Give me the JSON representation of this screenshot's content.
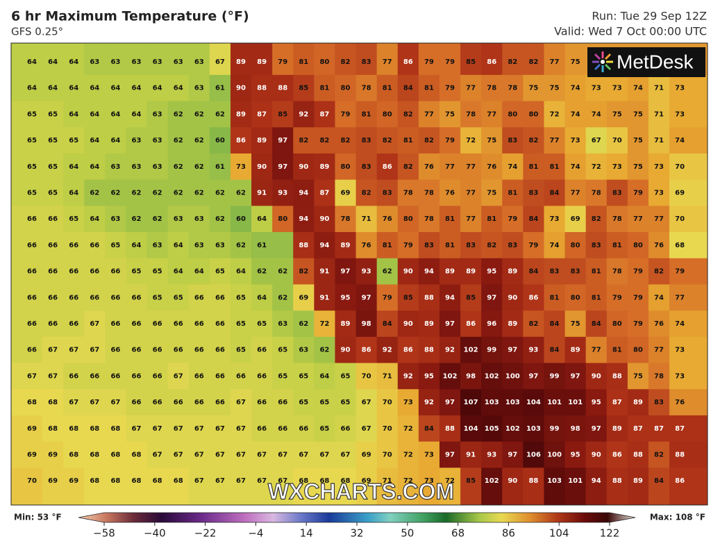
{
  "header": {
    "title": "6 hr Maximum Temperature (°F)",
    "model": "GFS 0.25°",
    "run": "Run: Tue 29 Sep 12Z",
    "valid": "Valid: Wed 7 Oct 00:00 UTC"
  },
  "logo": "MetDesk",
  "watermark": "WXCHARTS.COM",
  "map": {
    "grid": [
      [
        64,
        64,
        64,
        63,
        63,
        63,
        63,
        63,
        63,
        67,
        89,
        89,
        79,
        81,
        80,
        82,
        83,
        77,
        86,
        79,
        79,
        85,
        86,
        82,
        82,
        77,
        75,
        null,
        null,
        null,
        null,
        null
      ],
      [
        64,
        64,
        64,
        64,
        64,
        64,
        64,
        64,
        63,
        61,
        90,
        88,
        88,
        85,
        81,
        80,
        78,
        81,
        84,
        81,
        79,
        77,
        78,
        78,
        75,
        75,
        74,
        73,
        73,
        74,
        71,
        73
      ],
      [
        65,
        65,
        64,
        64,
        64,
        64,
        63,
        62,
        62,
        62,
        89,
        87,
        85,
        92,
        87,
        79,
        81,
        80,
        82,
        77,
        75,
        78,
        77,
        80,
        80,
        72,
        74,
        74,
        75,
        75,
        71,
        73
      ],
      [
        65,
        65,
        65,
        64,
        64,
        63,
        63,
        62,
        62,
        60,
        86,
        89,
        97,
        82,
        82,
        82,
        83,
        82,
        81,
        82,
        79,
        72,
        75,
        83,
        82,
        77,
        73,
        67,
        70,
        75,
        71,
        74
      ],
      [
        65,
        65,
        64,
        64,
        63,
        63,
        63,
        62,
        62,
        61,
        73,
        90,
        97,
        90,
        89,
        80,
        83,
        86,
        82,
        76,
        77,
        77,
        76,
        74,
        81,
        81,
        74,
        72,
        73,
        75,
        73,
        70
      ],
      [
        65,
        65,
        64,
        62,
        62,
        62,
        62,
        62,
        62,
        62,
        62,
        91,
        93,
        94,
        87,
        69,
        82,
        83,
        78,
        78,
        76,
        77,
        75,
        81,
        83,
        84,
        77,
        78,
        83,
        79,
        73,
        69
      ],
      [
        66,
        66,
        65,
        64,
        63,
        62,
        62,
        63,
        63,
        62,
        60,
        64,
        80,
        94,
        90,
        78,
        71,
        76,
        80,
        78,
        81,
        77,
        81,
        79,
        84,
        73,
        69,
        82,
        78,
        77,
        77,
        70
      ],
      [
        66,
        66,
        66,
        66,
        65,
        64,
        63,
        64,
        63,
        63,
        62,
        61,
        null,
        88,
        94,
        89,
        76,
        81,
        79,
        83,
        81,
        83,
        82,
        83,
        79,
        74,
        80,
        83,
        81,
        80,
        76,
        68
      ],
      [
        66,
        66,
        66,
        66,
        66,
        65,
        65,
        64,
        64,
        65,
        64,
        62,
        62,
        82,
        91,
        97,
        93,
        62,
        90,
        94,
        89,
        89,
        95,
        89,
        84,
        83,
        83,
        81,
        78,
        79,
        82,
        79
      ],
      [
        66,
        66,
        66,
        66,
        66,
        66,
        65,
        65,
        66,
        66,
        65,
        64,
        62,
        69,
        91,
        95,
        97,
        79,
        85,
        88,
        94,
        85,
        97,
        90,
        86,
        81,
        80,
        81,
        79,
        79,
        74,
        77
      ],
      [
        66,
        66,
        66,
        67,
        66,
        66,
        66,
        66,
        66,
        66,
        65,
        65,
        63,
        62,
        72,
        89,
        98,
        84,
        90,
        89,
        97,
        86,
        96,
        89,
        82,
        84,
        75,
        84,
        80,
        79,
        76,
        74
      ],
      [
        66,
        67,
        67,
        67,
        66,
        66,
        66,
        66,
        66,
        66,
        65,
        66,
        65,
        63,
        62,
        90,
        86,
        92,
        86,
        88,
        92,
        102,
        99,
        97,
        93,
        84,
        89,
        77,
        81,
        80,
        77,
        73
      ],
      [
        67,
        67,
        66,
        66,
        66,
        66,
        66,
        67,
        66,
        66,
        66,
        66,
        65,
        65,
        64,
        65,
        70,
        71,
        92,
        95,
        102,
        98,
        102,
        100,
        97,
        99,
        97,
        90,
        88,
        75,
        78,
        73
      ],
      [
        68,
        68,
        67,
        67,
        67,
        66,
        66,
        66,
        66,
        66,
        67,
        66,
        66,
        65,
        65,
        65,
        67,
        70,
        73,
        92,
        97,
        107,
        103,
        103,
        104,
        101,
        101,
        95,
        87,
        89,
        83,
        76
      ],
      [
        69,
        68,
        68,
        68,
        68,
        67,
        67,
        67,
        67,
        67,
        67,
        66,
        66,
        66,
        65,
        66,
        67,
        70,
        72,
        84,
        88,
        104,
        105,
        102,
        103,
        99,
        98,
        97,
        89,
        87,
        87,
        87
      ],
      [
        69,
        69,
        68,
        68,
        68,
        68,
        67,
        67,
        67,
        67,
        67,
        67,
        67,
        67,
        67,
        67,
        69,
        70,
        72,
        73,
        97,
        91,
        93,
        97,
        106,
        100,
        95,
        90,
        86,
        88,
        82,
        88
      ],
      [
        70,
        69,
        69,
        68,
        68,
        68,
        68,
        68,
        67,
        67,
        67,
        67,
        67,
        68,
        68,
        68,
        69,
        71,
        72,
        73,
        72,
        85,
        102,
        90,
        88,
        103,
        101,
        94,
        88,
        89,
        84,
        86
      ]
    ]
  },
  "colorbar": {
    "min_label": "Min: 53 °F",
    "max_label": "Max: 108 °F",
    "lim": [
      -58,
      122
    ],
    "ticks": [
      {
        "value": -58,
        "label": "−58"
      },
      {
        "value": -40,
        "label": "−40"
      },
      {
        "value": -22,
        "label": "−22"
      },
      {
        "value": -4,
        "label": "−4"
      },
      14,
      32,
      50,
      68,
      86,
      104,
      122
    ]
  }
}
